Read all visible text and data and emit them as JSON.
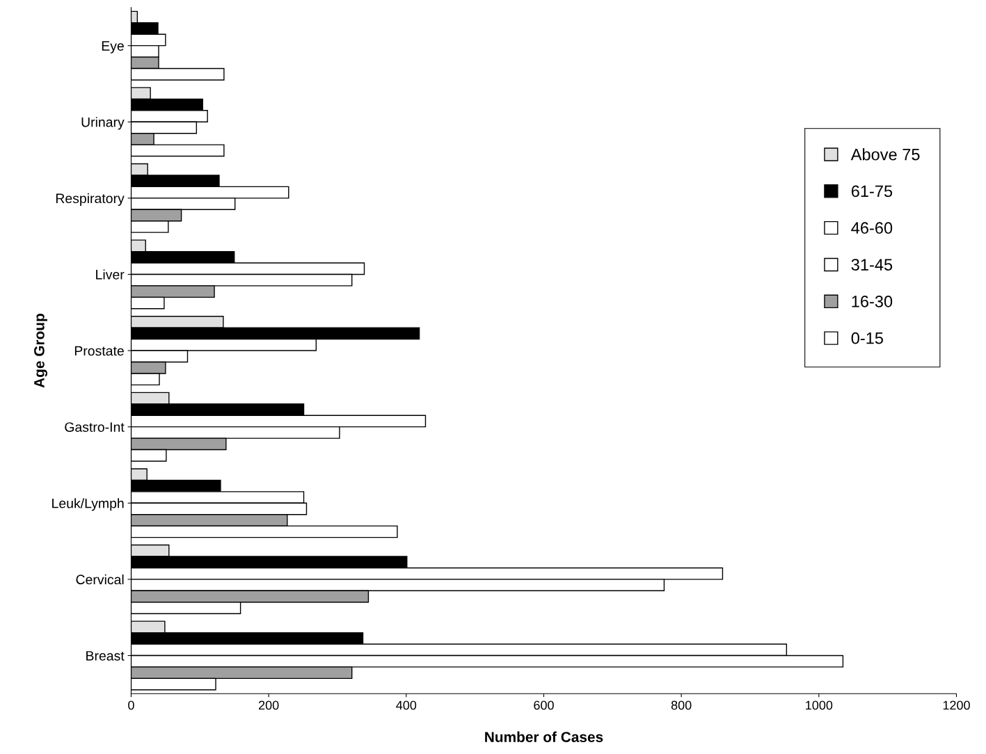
{
  "chart_data": {
    "type": "bar",
    "orientation": "horizontal",
    "xlabel": "Number of Cases",
    "ylabel": "Age Group",
    "categories": [
      "Eye",
      "Urinary",
      "Respiratory",
      "Liver",
      "Prostate",
      "Gastro-Int",
      "Leuk/Lymph",
      "Cervical",
      "Breast"
    ],
    "series": [
      {
        "name": "Above 75",
        "color": "#e0e0e0",
        "values": [
          9,
          28,
          24,
          21,
          134,
          55,
          23,
          55,
          49
        ]
      },
      {
        "name": "61-75",
        "color": "#000000",
        "values": [
          39,
          104,
          128,
          150,
          419,
          251,
          130,
          401,
          337
        ]
      },
      {
        "name": "46-60",
        "color": "#ffffff",
        "values": [
          50,
          111,
          229,
          339,
          269,
          428,
          251,
          860,
          953
        ]
      },
      {
        "name": "31-45",
        "color": "#ffffff",
        "values": [
          40,
          95,
          151,
          321,
          82,
          303,
          255,
          775,
          1035
        ]
      },
      {
        "name": "16-30",
        "color": "#a0a0a0",
        "values": [
          40,
          33,
          73,
          121,
          50,
          138,
          227,
          345,
          321
        ]
      },
      {
        "name": "0-15",
        "color": "#ffffff",
        "values": [
          135,
          135,
          54,
          48,
          41,
          51,
          387,
          159,
          123
        ]
      }
    ],
    "xlim": [
      0,
      1200
    ],
    "xticks": [
      0,
      200,
      400,
      600,
      800,
      1000,
      1200
    ],
    "grid": false,
    "legend": "right"
  }
}
